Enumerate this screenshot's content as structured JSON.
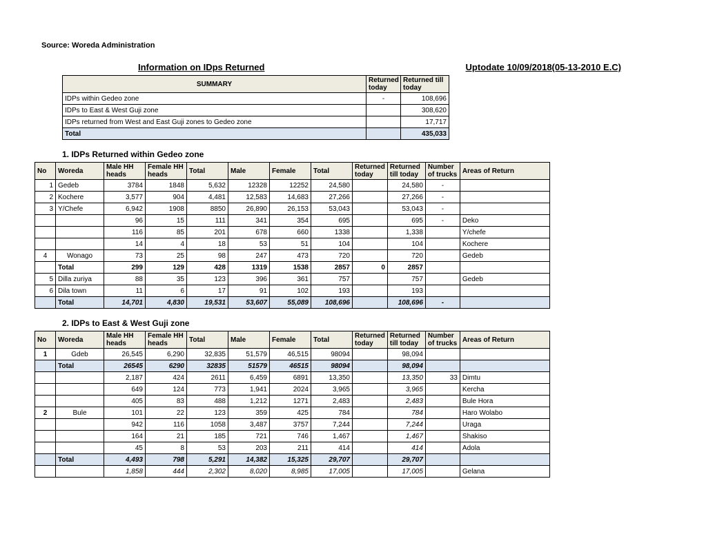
{
  "source": "Source: Woreda Administration",
  "title_left": "Information on IDps Returned",
  "title_right": "Uptodate 10/09/2018(05-13-2010 E.C)",
  "summary": {
    "header": "SUMMARY",
    "col_today": "Returned today",
    "col_till": "Returned till today",
    "rows": [
      {
        "label": "IDPs within Gedeo zone",
        "today": "-",
        "till": "108,696"
      },
      {
        "label": "IDPs to East & West Guji zone",
        "today": "",
        "till": "308,620"
      },
      {
        "label": "IDPs returned from West and East Guji zones to  Gedeo zone",
        "today": "",
        "till": "17,717"
      }
    ],
    "total_label": "Total",
    "total_till": "435,033"
  },
  "section1_title": "1. IDPs Returned within Gedeo zone",
  "section2_title": "2. IDPs to East & West Guji zone",
  "headers": {
    "no": "No",
    "woreda": "Woreda",
    "malehh": "Male HH heads",
    "femalehh": "Female HH heads",
    "total1": "Total",
    "male": "Male",
    "female": "Female",
    "total2": "Total",
    "rettoday": "Returned today",
    "rettill": "Returned till today",
    "trucks": "Number of trucks",
    "area": "Areas of Return"
  },
  "t1": [
    {
      "no": "1",
      "w": "Gedeb",
      "mh": "3784",
      "fh": "1848",
      "t1": "5,632",
      "m": "12328",
      "f": "12252",
      "t2": "24,580",
      "rt": "",
      "rl": "24,580",
      "tr": "-",
      "ar": ""
    },
    {
      "no": "2",
      "w": "Kochere",
      "mh": "3,577",
      "fh": "904",
      "t1": "4,481",
      "m": "12,583",
      "f": "14,683",
      "t2": "27,266",
      "rt": "",
      "rl": "27,266",
      "tr": "-",
      "ar": ""
    },
    {
      "no": "3",
      "w": "Y/Chefe",
      "mh": "6,942",
      "fh": "1908",
      "t1": "8850",
      "m": "26,890",
      "f": "26,153",
      "t2": "53,043",
      "rt": "",
      "rl": "53,043",
      "tr": "-",
      "ar": ""
    },
    {
      "no": "",
      "w": "",
      "mh": "96",
      "fh": "15",
      "t1": "111",
      "m": "341",
      "f": "354",
      "t2": "695",
      "rt": "",
      "rl": "695",
      "tr": "-",
      "ar": "Deko"
    },
    {
      "no": "",
      "w": "",
      "mh": "116",
      "fh": "85",
      "t1": "201",
      "m": "678",
      "f": "660",
      "t2": "1338",
      "rt": "",
      "rl": "1,338",
      "tr": "",
      "ar": "Y/chefe"
    },
    {
      "no": "",
      "w": "",
      "mh": "14",
      "fh": "4",
      "t1": "18",
      "m": "53",
      "f": "51",
      "t2": "104",
      "rt": "",
      "rl": "104",
      "tr": "",
      "ar": "Kochere"
    },
    {
      "no": "4",
      "w": "Wonago",
      "mh": "73",
      "fh": "25",
      "t1": "98",
      "m": "247",
      "f": "473",
      "t2": "720",
      "rt": "",
      "rl": "720",
      "tr": "",
      "ar": "Gedeb",
      "ctrNo": true,
      "ctrW": true
    }
  ],
  "t1_sub": {
    "lbl": "Total",
    "mh": "299",
    "fh": "129",
    "t1": "428",
    "m": "1319",
    "f": "1538",
    "t2": "2857",
    "rt": "0",
    "rl": "2857",
    "tr": "",
    "ar": ""
  },
  "t1b": [
    {
      "no": "5",
      "w": "Dilla zuriya",
      "mh": "88",
      "fh": "35",
      "t1": "123",
      "m": "396",
      "f": "361",
      "t2": "757",
      "rt": "",
      "rl": "757",
      "tr": "",
      "ar": "Gedeb"
    },
    {
      "no": "6",
      "w": "Dila town",
      "mh": "11",
      "fh": "6",
      "t1": "17",
      "m": "91",
      "f": "102",
      "t2": "193",
      "rt": "",
      "rl": "193",
      "tr": "",
      "ar": ""
    }
  ],
  "t1_total": {
    "lbl": "Total",
    "mh": "14,701",
    "fh": "4,830",
    "t1": "19,531",
    "m": "53,607",
    "f": "55,089",
    "t2": "108,696",
    "rt": "",
    "rl": "108,696",
    "tr": "-",
    "ar": ""
  },
  "t2a": [
    {
      "no": "1",
      "w": "Gdeb",
      "mh": "26,545",
      "fh": "6,290",
      "t1": "32,835",
      "m": "51,579",
      "f": "46,515",
      "t2": "98094",
      "rt": "",
      "rl": "98,094",
      "tr": "",
      "ar": ""
    }
  ],
  "t2a_total": {
    "lbl": "Total",
    "mh": "26545",
    "fh": "6290",
    "t1": "32835",
    "m": "51579",
    "f": "46515",
    "t2": "98094",
    "rt": "",
    "rl": "98,094",
    "tr": "",
    "ar": ""
  },
  "t2b": [
    {
      "no": "",
      "w": "",
      "mh": "2,187",
      "fh": "424",
      "t1": "2611",
      "m": "6,459",
      "f": "6891",
      "t2": "13,350",
      "rt": "",
      "rl": "13,350",
      "tr": "33",
      "ar": "Dimtu"
    },
    {
      "no": "",
      "w": "",
      "mh": "649",
      "fh": "124",
      "t1": "773",
      "m": "1,941",
      "f": "2024",
      "t2": "3,965",
      "rt": "",
      "rl": "3,965",
      "tr": "",
      "ar": "Kercha"
    },
    {
      "no": "",
      "w": "",
      "mh": "405",
      "fh": "83",
      "t1": "488",
      "m": "1,212",
      "f": "1271",
      "t2": "2,483",
      "rt": "",
      "rl": "2,483",
      "tr": "",
      "ar": "Bule Hora",
      "pad": true
    },
    {
      "no": "2",
      "w": "Bule",
      "mh": "101",
      "fh": "22",
      "t1": "123",
      "m": "359",
      "f": "425",
      "t2": "784",
      "rt": "",
      "rl": "784",
      "tr": "",
      "ar": "Haro Wolabo",
      "pad": true
    },
    {
      "no": "",
      "w": "",
      "mh": "942",
      "fh": "116",
      "t1": "1058",
      "m": "3,487",
      "f": "3757",
      "t2": "7,244",
      "rt": "",
      "rl": "7,244",
      "tr": "",
      "ar": "Uraga"
    },
    {
      "no": "",
      "w": "",
      "mh": "164",
      "fh": "21",
      "t1": "185",
      "m": "721",
      "f": "746",
      "t2": "1,467",
      "rt": "",
      "rl": "1,467",
      "tr": "",
      "ar": "Shakiso"
    },
    {
      "no": "",
      "w": "",
      "mh": "45",
      "fh": "8",
      "t1": "53",
      "m": "203",
      "f": "211",
      "t2": "414",
      "rt": "",
      "rl": "414",
      "tr": "",
      "ar": "Adola"
    }
  ],
  "t2b_total": {
    "lbl": "Total",
    "mh": "4,493",
    "fh": "798",
    "t1": "5,291",
    "m": "14,382",
    "f": "15,325",
    "t2": "29,707",
    "rt": "",
    "rl": "29,707",
    "tr": "",
    "ar": ""
  },
  "t2c": [
    {
      "no": "",
      "w": "",
      "mh": "1,858",
      "fh": "444",
      "t1": "2,302",
      "m": "8,020",
      "f": "8,985",
      "t2": "17,005",
      "rt": "",
      "rl": "17,005",
      "tr": "",
      "ar": "Gelana"
    }
  ],
  "cols": {
    "no": 30,
    "woreda": 70,
    "mh": 60,
    "fh": 60,
    "t1": 60,
    "m": 60,
    "f": 60,
    "t2": 60,
    "rt": 45,
    "rl": 55,
    "tr": 50,
    "ar": 130
  }
}
